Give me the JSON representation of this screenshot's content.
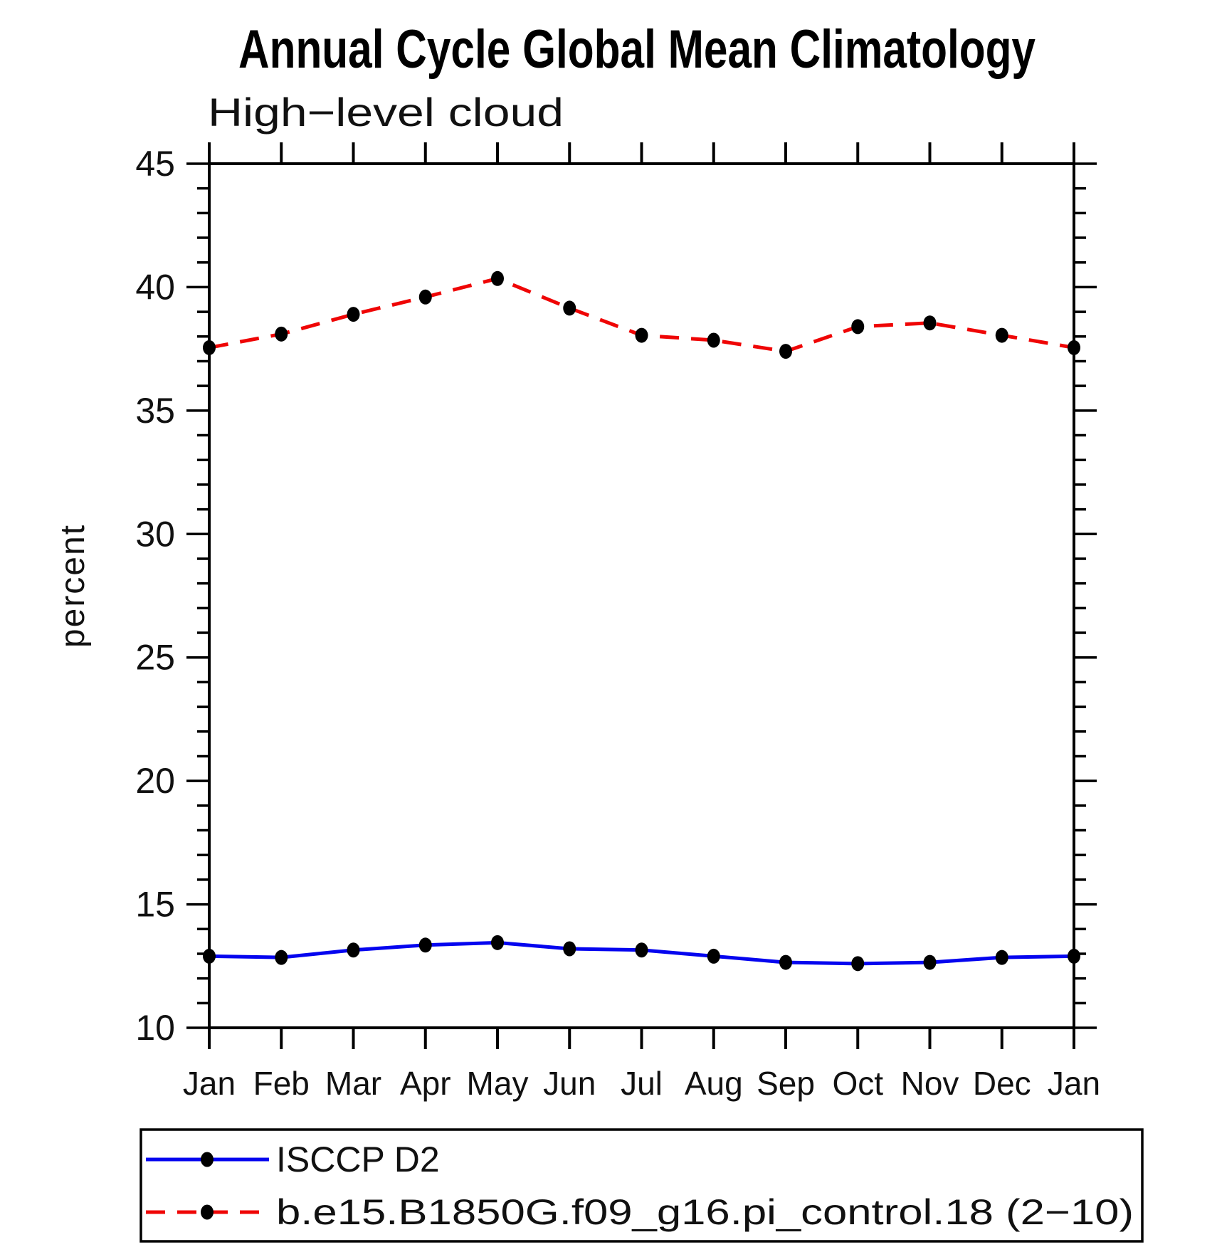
{
  "title": "Annual Cycle Global Mean Climatology",
  "subtitle": "High−level cloud",
  "ylabel": "percent",
  "chart_data": {
    "type": "line",
    "categories": [
      "Jan",
      "Feb",
      "Mar",
      "Apr",
      "May",
      "Jun",
      "Jul",
      "Aug",
      "Sep",
      "Oct",
      "Nov",
      "Dec",
      "Jan"
    ],
    "series": [
      {
        "name": "ISCCP D2",
        "color": "#0505ef",
        "line_style": "solid",
        "marker": "filled-circle",
        "marker_color": "#000000",
        "values": [
          12.9,
          12.85,
          13.15,
          13.35,
          13.45,
          13.2,
          13.15,
          12.9,
          12.65,
          12.6,
          12.65,
          12.85,
          12.9
        ]
      },
      {
        "name": "b.e15.B1850G.f09_g16.pi_control.18 (2−10)",
        "color": "#ef0505",
        "line_style": "dashed",
        "marker": "filled-circle",
        "marker_color": "#000000",
        "values": [
          37.55,
          38.1,
          38.9,
          39.6,
          40.35,
          39.15,
          38.05,
          37.85,
          37.4,
          38.4,
          38.55,
          38.05,
          37.55
        ]
      }
    ],
    "title": "Annual Cycle Global Mean Climatology",
    "subtitle": "High−level cloud",
    "xlabel": "",
    "ylabel": "percent",
    "ylim": [
      10,
      45
    ],
    "ytick_major_step": 5,
    "ytick_minor_step": 1,
    "ytick_labels": [
      "10",
      "15",
      "20",
      "25",
      "30",
      "35",
      "40",
      "45"
    ],
    "grid": false,
    "axis_color": "#000000",
    "legend_position": "bottom-box"
  }
}
